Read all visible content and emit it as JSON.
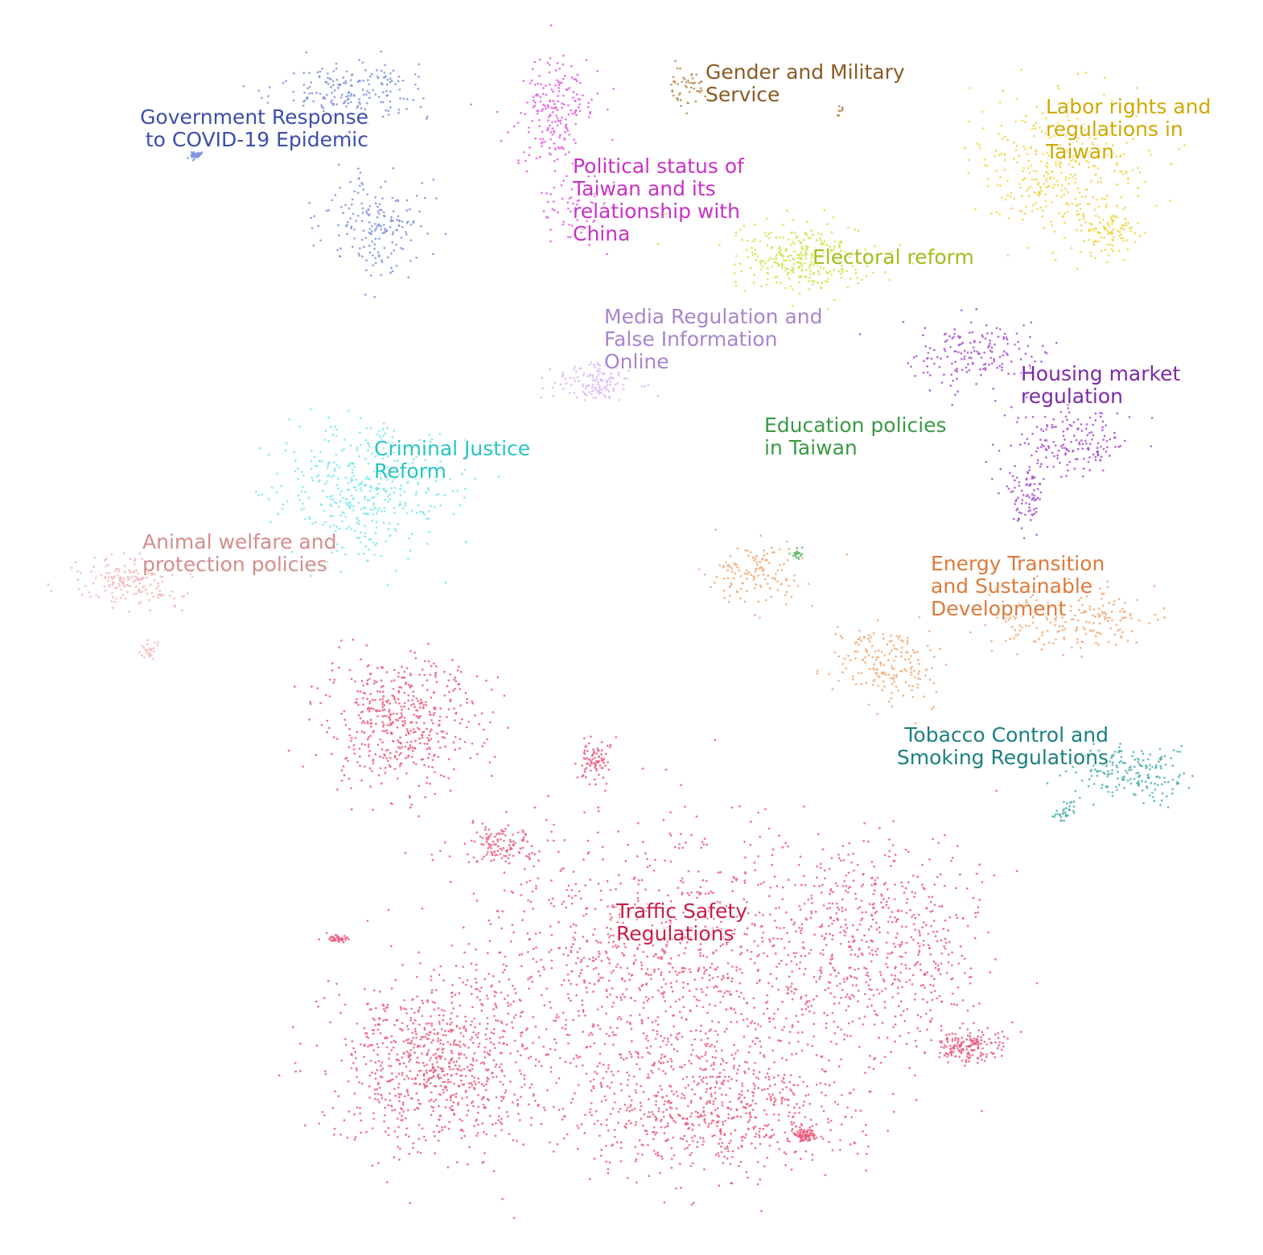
{
  "chart_data": {
    "type": "scatter",
    "title": "",
    "xlabel": "",
    "ylabel": "",
    "grid": false,
    "axes_visible": false,
    "legend": "none",
    "clusters": [
      {
        "name": "Government Response to COVID-19 Epidemic",
        "label_lines": [
          "Government Response",
          "to COVID-19 Epidemic"
        ],
        "label_align": "right",
        "label_color": "#3b4eab",
        "point_color": "#7f93dd",
        "approx_count": 420,
        "blobs": [
          {
            "center": [
              435,
              115
            ],
            "spread": [
              85,
              35
            ],
            "weight": 0.45
          },
          {
            "center": [
              470,
              280
            ],
            "spread": [
              60,
              60
            ],
            "weight": 0.45
          },
          {
            "center": [
              245,
              193
            ],
            "spread": [
              8,
              4
            ],
            "weight": 0.1
          }
        ]
      },
      {
        "name": "Political status of Taiwan and its relationship with China",
        "label_lines": [
          "Political status of",
          "Taiwan and its",
          "relationship with",
          "China"
        ],
        "label_align": "left",
        "label_color": "#c832c3",
        "point_color": "#e45be0",
        "approx_count": 270,
        "blobs": [
          {
            "center": [
              690,
              140
            ],
            "spread": [
              45,
              60
            ],
            "weight": 0.75
          },
          {
            "center": [
              720,
              260
            ],
            "spread": [
              45,
              40
            ],
            "weight": 0.25
          }
        ]
      },
      {
        "name": "Gender and Military Service",
        "label_lines": [
          "Gender and Military",
          "Service"
        ],
        "label_align": "left",
        "label_color": "#8a5a22",
        "point_color": "#b98a4f",
        "approx_count": 60,
        "blobs": [
          {
            "center": [
              855,
              110
            ],
            "spread": [
              18,
              25
            ],
            "weight": 0.85
          },
          {
            "center": [
              1045,
              138
            ],
            "spread": [
              6,
              6
            ],
            "weight": 0.15
          }
        ]
      },
      {
        "name": "Labor rights and regulations in Taiwan",
        "label_lines": [
          "Labor rights and",
          "regulations in",
          "Taiwan"
        ],
        "label_align": "left",
        "label_color": "#cfa900",
        "point_color": "#f2d545",
        "approx_count": 480,
        "blobs": [
          {
            "center": [
              1320,
              210
            ],
            "spread": [
              95,
              80
            ],
            "weight": 0.8
          },
          {
            "center": [
              1380,
              290
            ],
            "spread": [
              30,
              25
            ],
            "weight": 0.2
          }
        ]
      },
      {
        "name": "Electoral reform",
        "label_lines": [
          "Electoral reform"
        ],
        "label_align": "left",
        "label_color": "#9ec01a",
        "point_color": "#c9e84a",
        "approx_count": 320,
        "blobs": [
          {
            "center": [
              1000,
              320
            ],
            "spread": [
              80,
              35
            ],
            "weight": 1.0
          }
        ]
      },
      {
        "name": "Media Regulation and False Information Online",
        "label_lines": [
          "Media Regulation and",
          "False Information",
          "Online"
        ],
        "label_align": "left",
        "label_color": "#a885cc",
        "point_color": "#d8b8f2",
        "approx_count": 130,
        "blobs": [
          {
            "center": [
              740,
              475
            ],
            "spread": [
              45,
              22
            ],
            "weight": 1.0
          }
        ]
      },
      {
        "name": "Housing market regulation",
        "label_lines": [
          "Housing market",
          "regulation"
        ],
        "label_align": "left",
        "label_color": "#7b2aa8",
        "point_color": "#a74fcf",
        "approx_count": 420,
        "blobs": [
          {
            "center": [
              1210,
              440
            ],
            "spread": [
              80,
              45
            ],
            "weight": 0.4
          },
          {
            "center": [
              1330,
              545
            ],
            "spread": [
              70,
              40
            ],
            "weight": 0.4
          },
          {
            "center": [
              1275,
              615
            ],
            "spread": [
              25,
              35
            ],
            "weight": 0.2
          }
        ]
      },
      {
        "name": "Education policies in Taiwan",
        "label_lines": [
          "Education policies",
          "in Taiwan"
        ],
        "label_align": "left",
        "label_color": "#3a9a44",
        "point_color": "#5cbc63",
        "approx_count": 20,
        "blobs": [
          {
            "center": [
              990,
              688
            ],
            "spread": [
              6,
              6
            ],
            "weight": 1.0
          }
        ]
      },
      {
        "name": "Criminal Justice Reform",
        "label_lines": [
          "Criminal Justice",
          "Reform"
        ],
        "label_align": "left",
        "label_color": "#29c4c4",
        "point_color": "#7ae8ea",
        "approx_count": 420,
        "blobs": [
          {
            "center": [
              455,
              610
            ],
            "spread": [
              95,
              75
            ],
            "weight": 1.0
          }
        ]
      },
      {
        "name": "Animal welfare and protection policies",
        "label_lines": [
          "Animal welfare and",
          "protection policies"
        ],
        "label_align": "left",
        "label_color": "#d48d8d",
        "point_color": "#f2b7b7",
        "approx_count": 200,
        "blobs": [
          {
            "center": [
              160,
              725
            ],
            "spread": [
              55,
              30
            ],
            "weight": 0.88
          },
          {
            "center": [
              185,
              805
            ],
            "spread": [
              10,
              18
            ],
            "weight": 0.12
          }
        ]
      },
      {
        "name": "Energy Transition and Sustainable Development",
        "label_lines": [
          "Energy Transition",
          "and Sustainable",
          "Development"
        ],
        "label_align": "left",
        "label_color": "#dd7a3c",
        "point_color": "#f2a772",
        "approx_count": 520,
        "blobs": [
          {
            "center": [
              940,
              715
            ],
            "spread": [
              55,
              35
            ],
            "weight": 0.25
          },
          {
            "center": [
              1100,
              825
            ],
            "spread": [
              55,
              45
            ],
            "weight": 0.35
          },
          {
            "center": [
              1330,
              770
            ],
            "spread": [
              90,
              35
            ],
            "weight": 0.4
          }
        ]
      },
      {
        "name": "Tobacco Control and Smoking Regulations",
        "label_lines": [
          "Tobacco Control and",
          "Smoking Regulations"
        ],
        "label_align": "right",
        "label_color": "#1c7f7f",
        "point_color": "#4fb0b0",
        "approx_count": 220,
        "blobs": [
          {
            "center": [
              1410,
              960
            ],
            "spread": [
              70,
              30
            ],
            "weight": 0.85
          },
          {
            "center": [
              1325,
              1010
            ],
            "spread": [
              14,
              10
            ],
            "weight": 0.15
          }
        ]
      },
      {
        "name": "Traffic Safety Regulations",
        "label_lines": [
          "Traffic Safety",
          "Regulations"
        ],
        "label_align": "left",
        "label_color": "#c81e45",
        "point_color": "#ec5b7c",
        "approx_count": 4200,
        "blobs": [
          {
            "center": [
              500,
              900
            ],
            "spread": [
              90,
              70
            ],
            "weight": 0.12
          },
          {
            "center": [
              740,
              945
            ],
            "spread": [
              20,
              25
            ],
            "weight": 0.02
          },
          {
            "center": [
              840,
              1200
            ],
            "spread": [
              230,
              150
            ],
            "weight": 0.28
          },
          {
            "center": [
              540,
              1320
            ],
            "spread": [
              120,
              100
            ],
            "weight": 0.2
          },
          {
            "center": [
              880,
              1380
            ],
            "spread": [
              170,
              70
            ],
            "weight": 0.16
          },
          {
            "center": [
              1100,
              1180
            ],
            "spread": [
              110,
              110
            ],
            "weight": 0.12
          },
          {
            "center": [
              1205,
              1300
            ],
            "spread": [
              35,
              18
            ],
            "weight": 0.04
          },
          {
            "center": [
              620,
              1050
            ],
            "spread": [
              55,
              25
            ],
            "weight": 0.03
          },
          {
            "center": [
              420,
              1167
            ],
            "spread": [
              14,
              4
            ],
            "weight": 0.01
          },
          {
            "center": [
              1000,
              1410
            ],
            "spread": [
              14,
              8
            ],
            "weight": 0.02
          }
        ]
      }
    ]
  }
}
